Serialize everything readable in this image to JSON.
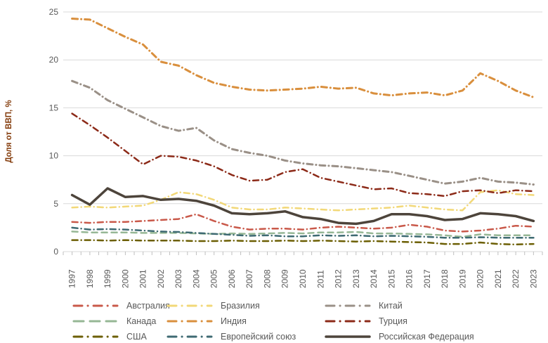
{
  "chart_data": {
    "type": "line",
    "ylabel": "Доля от ВВП, %",
    "xlabel": "",
    "ylim": [
      0,
      25
    ],
    "yticks": [
      0,
      5,
      10,
      15,
      20,
      25
    ],
    "grid": "horizontal",
    "legend_position": "bottom",
    "x": [
      1997,
      1998,
      1999,
      2000,
      2001,
      2002,
      2003,
      2004,
      2005,
      2006,
      2007,
      2008,
      2009,
      2010,
      2011,
      2012,
      2013,
      2014,
      2015,
      2016,
      2017,
      2018,
      2019,
      2020,
      2021,
      2022,
      2023
    ],
    "series": [
      {
        "id": "australia",
        "name": "Австралия",
        "color": "#C9594A",
        "style": "dashdot",
        "width": 2.5,
        "values": [
          3.1,
          3.0,
          3.1,
          3.1,
          3.2,
          3.3,
          3.4,
          3.9,
          3.2,
          2.6,
          2.3,
          2.4,
          2.4,
          2.3,
          2.5,
          2.6,
          2.5,
          2.4,
          2.5,
          2.8,
          2.6,
          2.2,
          2.1,
          2.2,
          2.4,
          2.7,
          2.6
        ]
      },
      {
        "id": "canada",
        "name": "Канада",
        "color": "#96B795",
        "style": "dash",
        "width": 2.5,
        "values": [
          2.1,
          2.0,
          2.0,
          2.0,
          1.95,
          1.95,
          1.95,
          1.9,
          1.85,
          1.9,
          1.85,
          1.9,
          1.95,
          1.9,
          2.0,
          2.0,
          2.05,
          1.9,
          1.9,
          1.85,
          1.8,
          1.7,
          1.55,
          1.8,
          1.7,
          1.7,
          1.7
        ]
      },
      {
        "id": "usa",
        "name": "США",
        "color": "#6C5F04",
        "style": "dashdot",
        "width": 2.5,
        "values": [
          1.2,
          1.2,
          1.15,
          1.2,
          1.15,
          1.15,
          1.15,
          1.1,
          1.1,
          1.15,
          1.1,
          1.1,
          1.15,
          1.1,
          1.15,
          1.1,
          1.05,
          1.1,
          1.05,
          1.0,
          0.95,
          0.8,
          0.8,
          0.95,
          0.8,
          0.75,
          0.8
        ]
      },
      {
        "id": "brazil",
        "name": "Бразилия",
        "color": "#F2D878",
        "style": "dashdot",
        "width": 2.5,
        "values": [
          4.6,
          4.7,
          4.6,
          4.7,
          4.8,
          5.4,
          6.2,
          6.0,
          5.4,
          4.6,
          4.4,
          4.4,
          4.6,
          4.5,
          4.4,
          4.3,
          4.4,
          4.5,
          4.6,
          4.8,
          4.6,
          4.4,
          4.3,
          6.2,
          6.4,
          6.0,
          5.9
        ]
      },
      {
        "id": "india",
        "name": "Индия",
        "color": "#D98F3D",
        "style": "dashdot",
        "width": 3,
        "values": [
          24.3,
          24.2,
          23.3,
          22.4,
          21.6,
          19.8,
          19.4,
          18.4,
          17.6,
          17.2,
          16.9,
          16.8,
          16.9,
          17.0,
          17.2,
          17.0,
          17.1,
          16.5,
          16.3,
          16.5,
          16.6,
          16.3,
          16.8,
          18.6,
          17.8,
          16.8,
          16.1
        ]
      },
      {
        "id": "eu",
        "name": "Европейский союз",
        "color": "#3E6A72",
        "style": "dashdot",
        "width": 2.5,
        "values": [
          2.5,
          2.3,
          2.35,
          2.3,
          2.2,
          2.1,
          2.05,
          1.95,
          1.85,
          1.75,
          1.65,
          1.7,
          1.6,
          1.6,
          1.7,
          1.65,
          1.7,
          1.6,
          1.65,
          1.6,
          1.55,
          1.45,
          1.45,
          1.5,
          1.45,
          1.45,
          1.45
        ]
      },
      {
        "id": "china",
        "name": "Китай",
        "color": "#9A9087",
        "style": "dashdot",
        "width": 3,
        "values": [
          17.8,
          17.1,
          15.8,
          14.9,
          14.0,
          13.1,
          12.6,
          12.9,
          11.6,
          10.7,
          10.3,
          10.0,
          9.5,
          9.2,
          9.0,
          8.9,
          8.7,
          8.5,
          8.3,
          7.9,
          7.5,
          7.1,
          7.3,
          7.7,
          7.3,
          7.2,
          7.0
        ]
      },
      {
        "id": "turkey",
        "name": "Турция",
        "color": "#8C2A18",
        "style": "dashdot",
        "width": 2.5,
        "values": [
          14.4,
          13.2,
          11.9,
          10.5,
          9.1,
          10.0,
          9.9,
          9.5,
          8.9,
          8.0,
          7.4,
          7.5,
          8.3,
          8.6,
          7.7,
          7.3,
          6.9,
          6.5,
          6.6,
          6.1,
          6.0,
          5.8,
          6.3,
          6.4,
          6.1,
          6.4,
          6.3
        ]
      },
      {
        "id": "russia",
        "name": "Российская Федерация",
        "color": "#4D443B",
        "style": "solid",
        "width": 3.5,
        "values": [
          5.9,
          4.9,
          6.6,
          5.7,
          5.8,
          5.4,
          5.5,
          5.3,
          4.8,
          4.0,
          3.9,
          4.0,
          4.2,
          3.6,
          3.4,
          3.0,
          2.9,
          3.2,
          3.9,
          3.9,
          3.7,
          3.3,
          3.4,
          4.0,
          3.9,
          3.7,
          3.2
        ]
      }
    ],
    "axis_colors": {
      "ylabel_color": "#843C0C",
      "tick_label_color": "#595959",
      "gridline_color": "#D9D9D9",
      "tick_mark_color": "#BFBFBF"
    }
  }
}
